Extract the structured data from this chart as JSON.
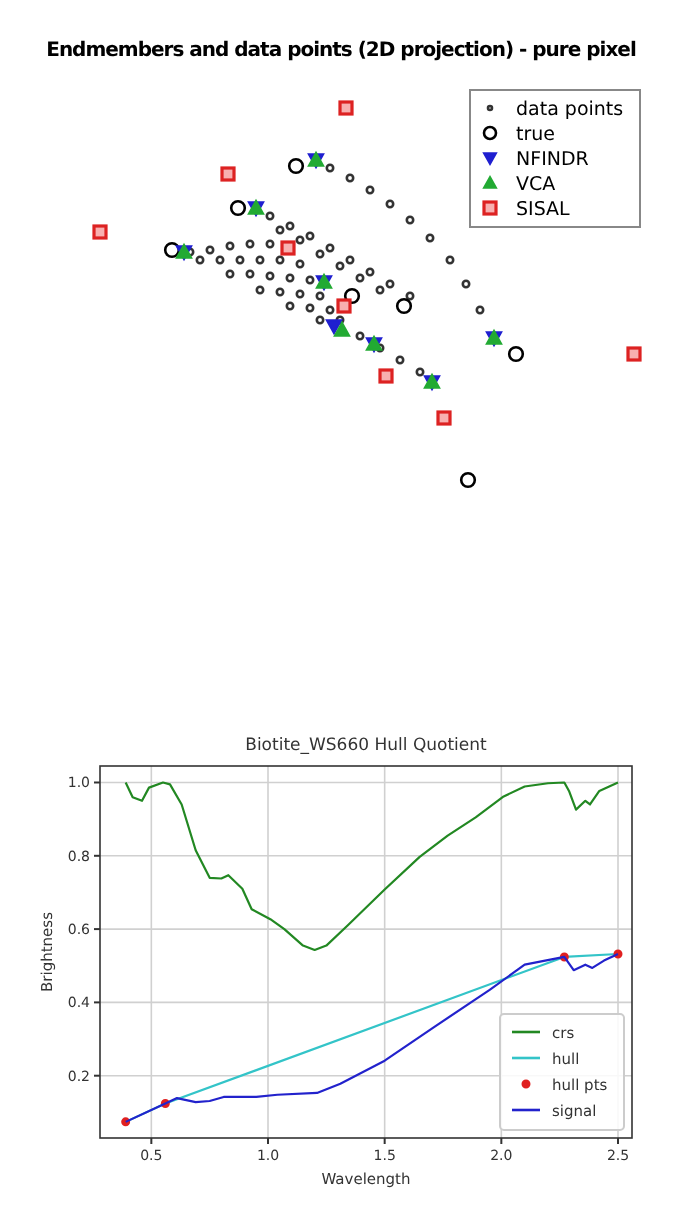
{
  "chart_data": [
    {
      "type": "other",
      "title": "Endmembers and data points (2D projection) - pure pixel",
      "annotations": [
        "data points",
        "true",
        "NFINDR",
        "VCA",
        "SISAL"
      ]
    },
    {
      "type": "line",
      "title": "Biotite_WS660 Hull Quotient",
      "xlabel": "Wavelength",
      "ylabel": "Brightness",
      "xlim": [
        0.28,
        2.56
      ],
      "ylim": [
        0.03,
        1.045
      ],
      "xticks": [
        0.5,
        {
          "value": 1,
          "label": "1.0"
        },
        1.5,
        {
          "value": 2,
          "label": "2.0"
        },
        2.5
      ],
      "yticks": [
        0.2,
        0.4,
        0.6,
        0.8,
        {
          "value": 1,
          "label": "1.0"
        }
      ],
      "grid": true,
      "legend": "bottom right",
      "series": [
        {
          "name": "crs",
          "color": "#228822",
          "x": [
            0.39,
            0.42,
            0.46,
            0.49,
            0.55,
            0.58,
            0.63,
            0.69,
            0.75,
            0.8,
            0.83,
            0.89,
            0.93,
            1.01,
            1.07,
            1.15,
            1.2,
            1.25,
            1.34,
            1.5,
            1.65,
            1.77,
            1.89,
            2.01,
            2.1,
            2.2,
            2.27,
            2.29,
            2.32,
            2.36,
            2.38,
            2.42,
            2.5
          ],
          "values": [
            1.0,
            0.96,
            0.95,
            0.986,
            1.0,
            0.995,
            0.94,
            0.815,
            0.74,
            0.738,
            0.747,
            0.71,
            0.654,
            0.627,
            0.6,
            0.555,
            0.543,
            0.555,
            0.609,
            0.708,
            0.797,
            0.855,
            0.905,
            0.962,
            0.989,
            0.998,
            1.0,
            0.977,
            0.926,
            0.95,
            0.94,
            0.977,
            1.0
          ]
        },
        {
          "name": "hull",
          "color": "#33c4c8",
          "x": [
            0.39,
            0.56,
            2.27,
            2.5
          ],
          "values": [
            0.074,
            0.124,
            0.524,
            0.532
          ]
        },
        {
          "name": "hull pts",
          "type": "scatter",
          "marker": "circle",
          "color": "#e02020",
          "x": [
            0.39,
            0.56,
            2.27,
            2.5
          ],
          "values": [
            0.074,
            0.124,
            0.524,
            0.532
          ]
        },
        {
          "name": "signal",
          "color": "#2222cc",
          "x": [
            0.39,
            0.56,
            0.61,
            0.69,
            0.75,
            0.81,
            0.95,
            1.04,
            1.21,
            1.31,
            1.5,
            1.71,
            1.95,
            2.1,
            2.27,
            2.31,
            2.36,
            2.39,
            2.44,
            2.5
          ],
          "values": [
            0.074,
            0.124,
            0.139,
            0.128,
            0.131,
            0.142,
            0.142,
            0.148,
            0.153,
            0.178,
            0.241,
            0.332,
            0.434,
            0.503,
            0.524,
            0.488,
            0.503,
            0.494,
            0.514,
            0.532
          ]
        }
      ]
    }
  ]
}
